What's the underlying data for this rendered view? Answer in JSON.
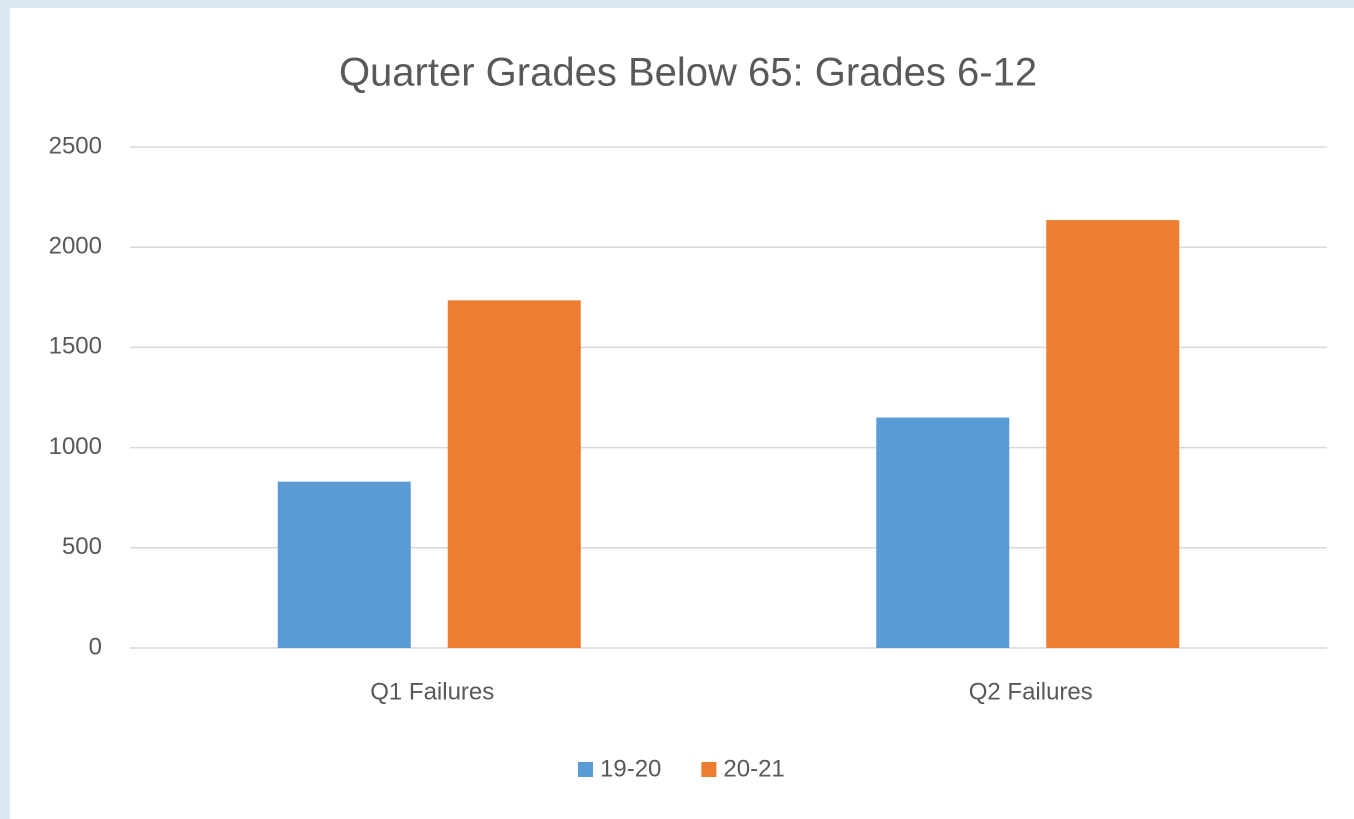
{
  "chart_data": {
    "type": "bar",
    "title": "Quarter Grades Below 65: Grades 6-12",
    "categories": [
      "Q1 Failures",
      "Q2 Failures"
    ],
    "series": [
      {
        "name": "19-20",
        "color": "#5b9bd5",
        "values": [
          830,
          1150
        ]
      },
      {
        "name": "20-21",
        "color": "#ed7d31",
        "values": [
          1735,
          2135
        ]
      }
    ],
    "ylim": [
      0,
      2500
    ],
    "yticks": [
      0,
      500,
      1000,
      1500,
      2000,
      2500
    ],
    "grid": true,
    "legend": "bottom"
  }
}
